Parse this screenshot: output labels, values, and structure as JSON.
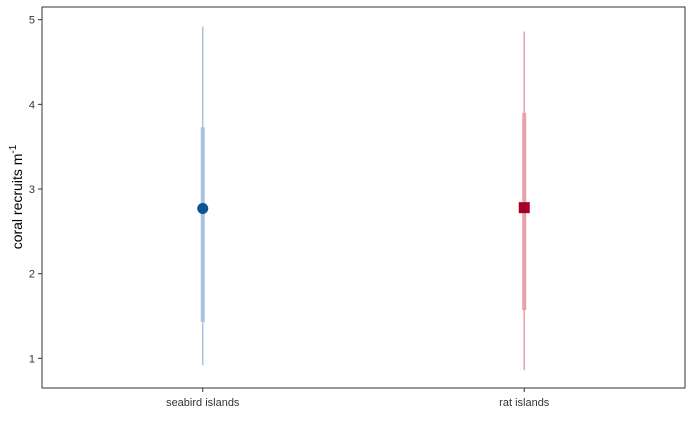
{
  "chart_data": {
    "type": "pointrange",
    "title": "",
    "xlabel": "",
    "ylabel": "coral recruits m",
    "ylabel_superscript": "-1",
    "ylim": [
      0.65,
      5.15
    ],
    "yticks": [
      1,
      2,
      3,
      4,
      5
    ],
    "grid": false,
    "categories": [
      "seabird islands",
      "rat islands"
    ],
    "series": [
      {
        "name": "seabird islands",
        "shape": "circle",
        "color": "#0b5394",
        "interval_color": "#a9c4de",
        "estimate": 2.77,
        "inner_interval": [
          1.43,
          3.73
        ],
        "outer_interval": [
          0.92,
          4.92
        ]
      },
      {
        "name": "rat islands",
        "shape": "square",
        "color": "#a50026",
        "interval_color": "#e8a0ad",
        "estimate": 2.78,
        "inner_interval": [
          1.57,
          3.9
        ],
        "outer_interval": [
          0.86,
          4.86
        ]
      }
    ]
  }
}
